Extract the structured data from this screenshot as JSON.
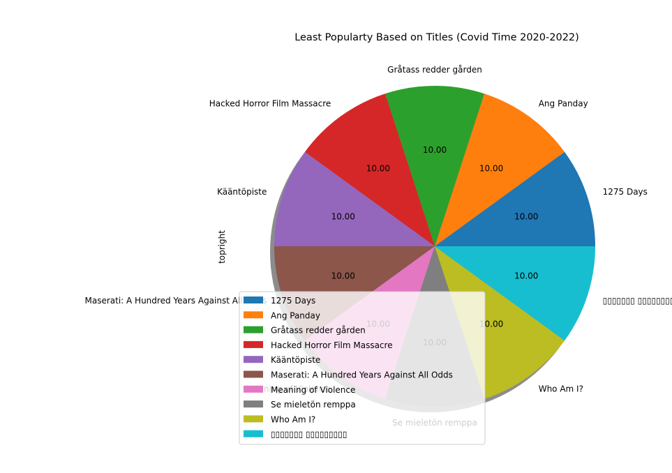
{
  "chart_data": {
    "type": "pie",
    "title": "Least Popularty Based on Titles (Covid Time 2020-2022)",
    "ylabel": "topright",
    "autopct_format": "%.2f",
    "shadow": true,
    "start_angle_deg": 0,
    "legend_position": "lower-left",
    "categories": [
      "1275 Days",
      "Ang Panday",
      "Gråtass redder gården",
      "Hacked Horror Film Massacre",
      "Kääntöpiste",
      "Maserati: A Hundred Years Against All Odds",
      "Meaning of Violence",
      "Se mieletön remppa",
      "Who Am I?",
      "▯▯▯▯▯▯▯ ▯▯▯▯▯▯▯▯▯"
    ],
    "values": [
      10,
      10,
      10,
      10,
      10,
      10,
      10,
      10,
      10,
      10
    ],
    "colors": [
      "#1f77b4",
      "#ff7f0e",
      "#2ca02c",
      "#d62728",
      "#9467bd",
      "#8c564b",
      "#e377c2",
      "#7f7f7f",
      "#bcbd22",
      "#17becf"
    ]
  }
}
